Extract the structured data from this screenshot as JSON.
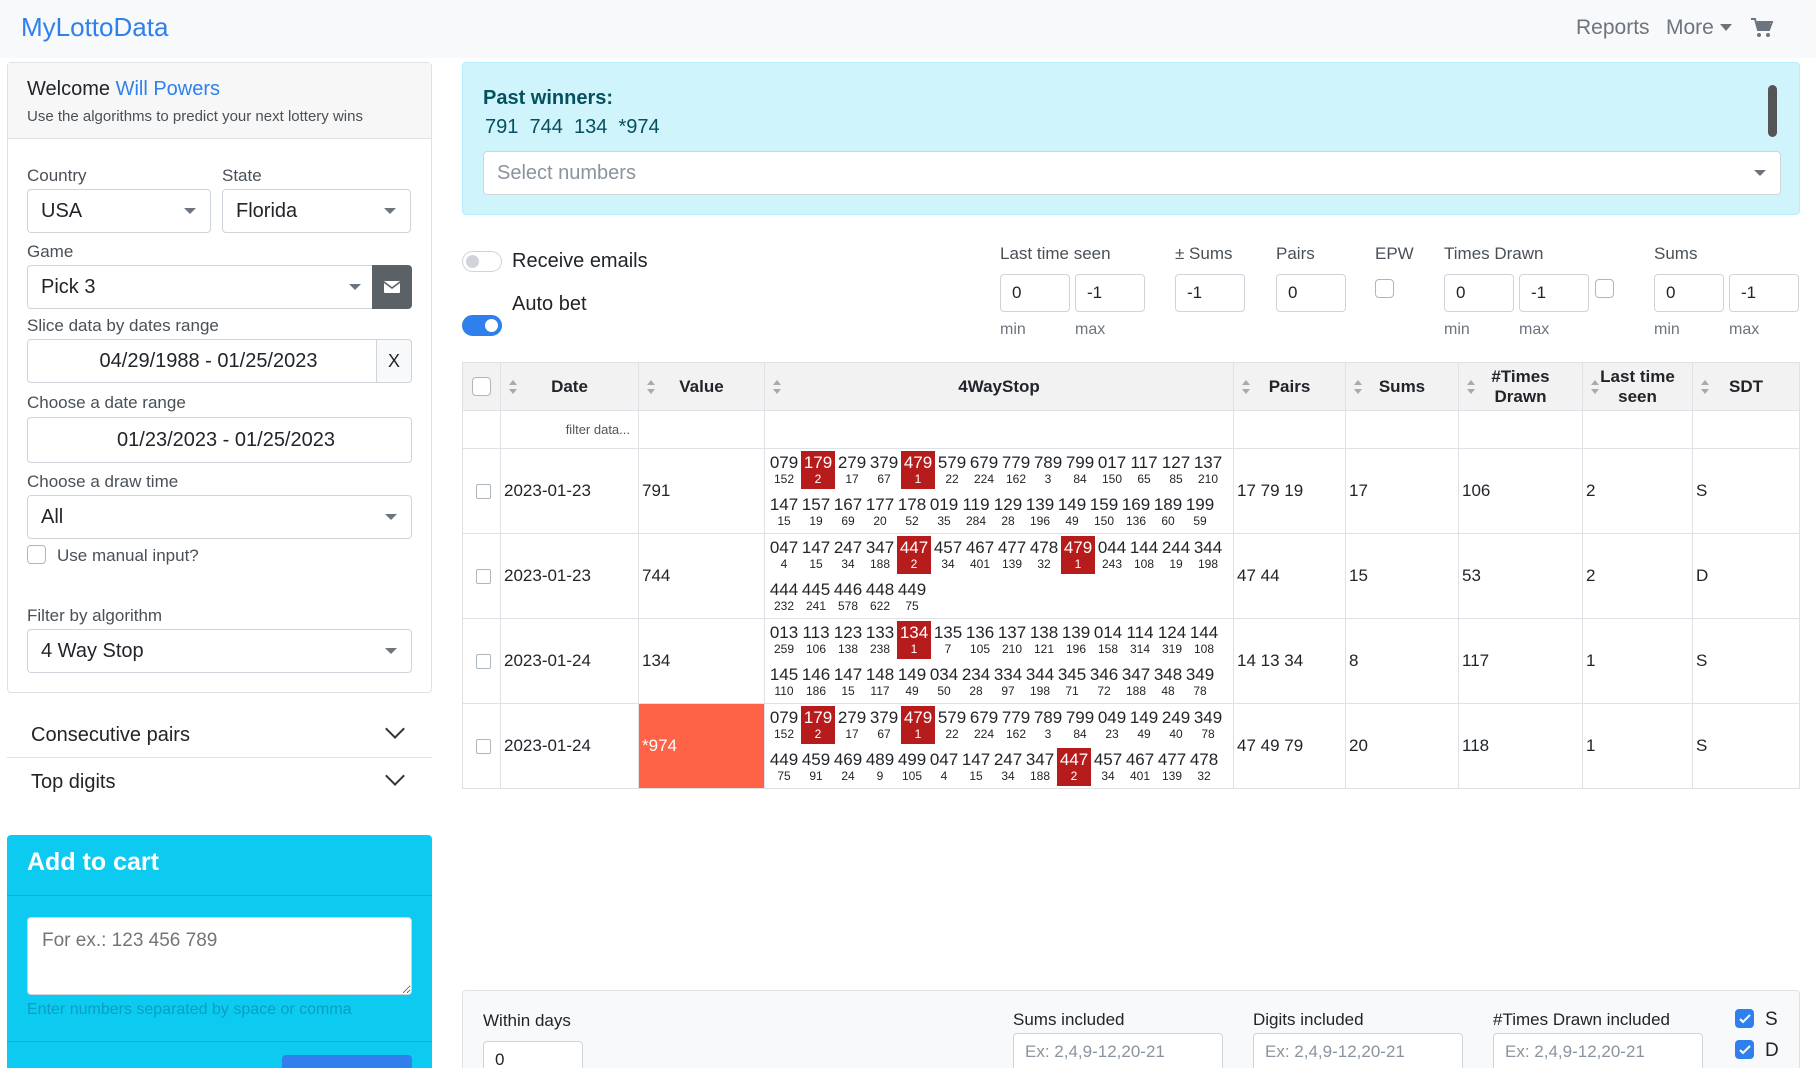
{
  "nav": {
    "brand": "MyLottoData",
    "reports": "Reports",
    "more": "More"
  },
  "sidebar": {
    "welcome": "Welcome",
    "user": "Will Powers",
    "subtitle": "Use the algorithms to predict your next lottery wins",
    "country_label": "Country",
    "country": "USA",
    "state_label": "State",
    "state": "Florida",
    "game_label": "Game",
    "game": "Pick 3",
    "slice_label": "Slice data by dates range",
    "slice": "04/29/1988 - 01/25/2023",
    "slice_clear": "X",
    "range_label": "Choose a date range",
    "range": "01/23/2023 - 01/25/2023",
    "draw_label": "Choose a draw time",
    "draw": "All",
    "manual_label": "Use manual input?",
    "algo_label": "Filter by algorithm",
    "algo": "4 Way Stop",
    "acc1": "Consecutive pairs",
    "acc2": "Top digits",
    "cart_title": "Add to cart",
    "cart_placeholder": "For ex.: 123 456 789",
    "cart_hint": "Enter numbers separated by space or comma"
  },
  "winners": {
    "title": "Past winners:",
    "numbers": "791  744  134  *974",
    "placeholder": "Select numbers"
  },
  "filters": {
    "emails": "Receive emails",
    "autobet": "Auto bet",
    "last_seen": "Last time seen",
    "pm_sums": "± Sums",
    "pairs": "Pairs",
    "epw": "EPW",
    "times": "Times Drawn",
    "sums": "Sums",
    "min": "min",
    "max": "max",
    "v_last_min": "0",
    "v_last_max": "-1",
    "v_pm": "-1",
    "v_pairs": "0",
    "v_times_min": "0",
    "v_times_max": "-1",
    "v_sums_min": "0",
    "v_sums_max": "-1"
  },
  "table": {
    "headers": {
      "date": "Date",
      "value": "Value",
      "ways": "4WayStop",
      "pairs": "Pairs",
      "sums": "Sums",
      "times": "#Times Drawn",
      "last": "Last time seen",
      "sdt": "SDT"
    },
    "filter": "filter data...",
    "highlight_color": "#ff6347",
    "rows": [
      {
        "date": "2023-01-23",
        "value": "791",
        "pairs": "17 79 19",
        "sums": "17",
        "times": "106",
        "last": "2",
        "sdt": "S",
        "ways": [
          [
            "079",
            "152"
          ],
          [
            "179",
            "2",
            1
          ],
          [
            "279",
            "17"
          ],
          [
            "379",
            "67"
          ],
          [
            "479",
            "1",
            1
          ],
          [
            "579",
            "22"
          ],
          [
            "679",
            "224"
          ],
          [
            "779",
            "162"
          ],
          [
            "789",
            "3"
          ],
          [
            "799",
            "84"
          ],
          [
            "017",
            "150"
          ],
          [
            "117",
            "65"
          ],
          [
            "127",
            "85"
          ],
          [
            "137",
            "210"
          ],
          [
            "147",
            "15"
          ],
          [
            "157",
            "19"
          ],
          [
            "167",
            "69"
          ],
          [
            "177",
            "20"
          ],
          [
            "178",
            "52"
          ],
          [
            "019",
            "35"
          ],
          [
            "119",
            "284"
          ],
          [
            "129",
            "28"
          ],
          [
            "139",
            "196"
          ],
          [
            "149",
            "49"
          ],
          [
            "159",
            "150"
          ],
          [
            "169",
            "136"
          ],
          [
            "189",
            "60"
          ],
          [
            "199",
            "59"
          ]
        ]
      },
      {
        "date": "2023-01-23",
        "value": "744",
        "pairs": "47 44",
        "sums": "15",
        "times": "53",
        "last": "2",
        "sdt": "D",
        "ways": [
          [
            "047",
            "4"
          ],
          [
            "147",
            "15"
          ],
          [
            "247",
            "34"
          ],
          [
            "347",
            "188"
          ],
          [
            "447",
            "2",
            1
          ],
          [
            "457",
            "34"
          ],
          [
            "467",
            "401"
          ],
          [
            "477",
            "139"
          ],
          [
            "478",
            "32"
          ],
          [
            "479",
            "1",
            1
          ],
          [
            "044",
            "243"
          ],
          [
            "144",
            "108"
          ],
          [
            "244",
            "19"
          ],
          [
            "344",
            "198"
          ],
          [
            "444",
            "232"
          ],
          [
            "445",
            "241"
          ],
          [
            "446",
            "578"
          ],
          [
            "448",
            "622"
          ],
          [
            "449",
            "75"
          ]
        ]
      },
      {
        "date": "2023-01-24",
        "value": "134",
        "pairs": "14 13 34",
        "sums": "8",
        "times": "117",
        "last": "1",
        "sdt": "S",
        "ways": [
          [
            "013",
            "259"
          ],
          [
            "113",
            "106"
          ],
          [
            "123",
            "138"
          ],
          [
            "133",
            "238"
          ],
          [
            "134",
            "1",
            1
          ],
          [
            "135",
            "7"
          ],
          [
            "136",
            "105"
          ],
          [
            "137",
            "210"
          ],
          [
            "138",
            "121"
          ],
          [
            "139",
            "196"
          ],
          [
            "014",
            "158"
          ],
          [
            "114",
            "314"
          ],
          [
            "124",
            "319"
          ],
          [
            "144",
            "108"
          ],
          [
            "145",
            "110"
          ],
          [
            "146",
            "186"
          ],
          [
            "147",
            "15"
          ],
          [
            "148",
            "117"
          ],
          [
            "149",
            "49"
          ],
          [
            "034",
            "50"
          ],
          [
            "234",
            "28"
          ],
          [
            "334",
            "97"
          ],
          [
            "344",
            "198"
          ],
          [
            "345",
            "71"
          ],
          [
            "346",
            "72"
          ],
          [
            "347",
            "188"
          ],
          [
            "348",
            "48"
          ],
          [
            "349",
            "78"
          ]
        ]
      },
      {
        "date": "2023-01-24",
        "value": "*974",
        "highlight": true,
        "pairs": "47 49 79",
        "sums": "20",
        "times": "118",
        "last": "1",
        "sdt": "S",
        "ways": [
          [
            "079",
            "152"
          ],
          [
            "179",
            "2",
            1
          ],
          [
            "279",
            "17"
          ],
          [
            "379",
            "67"
          ],
          [
            "479",
            "1",
            1
          ],
          [
            "579",
            "22"
          ],
          [
            "679",
            "224"
          ],
          [
            "779",
            "162"
          ],
          [
            "789",
            "3"
          ],
          [
            "799",
            "84"
          ],
          [
            "049",
            "23"
          ],
          [
            "149",
            "49"
          ],
          [
            "249",
            "40"
          ],
          [
            "349",
            "78"
          ],
          [
            "449",
            "75"
          ],
          [
            "459",
            "91"
          ],
          [
            "469",
            "24"
          ],
          [
            "489",
            "9"
          ],
          [
            "499",
            "105"
          ],
          [
            "047",
            "4"
          ],
          [
            "147",
            "15"
          ],
          [
            "247",
            "34"
          ],
          [
            "347",
            "188"
          ],
          [
            "447",
            "2",
            1
          ],
          [
            "457",
            "34"
          ],
          [
            "467",
            "401"
          ],
          [
            "477",
            "139"
          ],
          [
            "478",
            "32"
          ]
        ]
      }
    ]
  },
  "bottom": {
    "within": "Within days",
    "within_val": "0",
    "sums_inc": "Sums included",
    "digits_inc": "Digits included",
    "times_inc": "#Times Drawn included",
    "ex": "Ex: 2,4,9-12,20-21",
    "s": "S",
    "d": "D"
  }
}
